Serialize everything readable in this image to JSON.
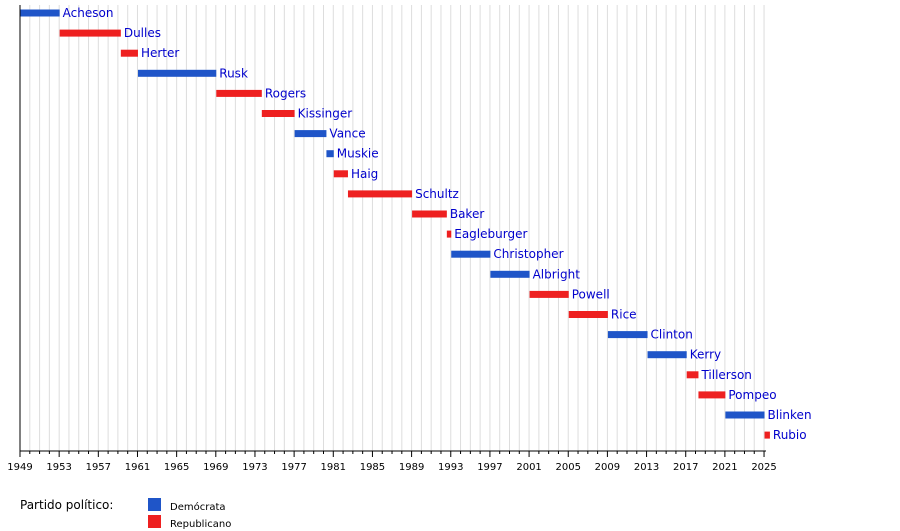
{
  "chart_data": {
    "type": "timeline",
    "xlim": [
      1949,
      2025.2
    ],
    "x_ticks": [
      1949,
      1953,
      1957,
      1961,
      1965,
      1969,
      1973,
      1977,
      1981,
      1985,
      1989,
      1993,
      1997,
      2001,
      2005,
      2009,
      2013,
      2017,
      2021,
      2025
    ],
    "grid": true,
    "series": [
      {
        "name": "Demócrata",
        "color": "#1f55c8"
      },
      {
        "name": "Republicano",
        "color": "#ee2020"
      }
    ],
    "items": [
      {
        "name": "Acheson",
        "start": 1949.05,
        "end": 1953.05,
        "party": "Demócrata"
      },
      {
        "name": "Dulles",
        "start": 1953.05,
        "end": 1959.3,
        "party": "Republicano"
      },
      {
        "name": "Herter",
        "start": 1959.3,
        "end": 1961.05,
        "party": "Republicano"
      },
      {
        "name": "Rusk",
        "start": 1961.05,
        "end": 1969.05,
        "party": "Demócrata"
      },
      {
        "name": "Rogers",
        "start": 1969.05,
        "end": 1973.7,
        "party": "Republicano"
      },
      {
        "name": "Kissinger",
        "start": 1973.7,
        "end": 1977.05,
        "party": "Republicano"
      },
      {
        "name": "Vance",
        "start": 1977.05,
        "end": 1980.3,
        "party": "Demócrata"
      },
      {
        "name": "Muskie",
        "start": 1980.3,
        "end": 1981.05,
        "party": "Demócrata"
      },
      {
        "name": "Haig",
        "start": 1981.05,
        "end": 1982.5,
        "party": "Republicano"
      },
      {
        "name": "Schultz",
        "start": 1982.5,
        "end": 1989.05,
        "party": "Republicano"
      },
      {
        "name": "Baker",
        "start": 1989.05,
        "end": 1992.6,
        "party": "Republicano"
      },
      {
        "name": "Eagleburger",
        "start": 1992.6,
        "end": 1993.05,
        "party": "Republicano"
      },
      {
        "name": "Christopher",
        "start": 1993.05,
        "end": 1997.05,
        "party": "Demócrata"
      },
      {
        "name": "Albright",
        "start": 1997.05,
        "end": 2001.05,
        "party": "Demócrata"
      },
      {
        "name": "Powell",
        "start": 2001.05,
        "end": 2005.05,
        "party": "Republicano"
      },
      {
        "name": "Rice",
        "start": 2005.05,
        "end": 2009.05,
        "party": "Republicano"
      },
      {
        "name": "Clinton",
        "start": 2009.05,
        "end": 2013.1,
        "party": "Demócrata"
      },
      {
        "name": "Kerry",
        "start": 2013.1,
        "end": 2017.1,
        "party": "Demócrata"
      },
      {
        "name": "Tillerson",
        "start": 2017.1,
        "end": 2018.3,
        "party": "Republicano"
      },
      {
        "name": "Pompeo",
        "start": 2018.3,
        "end": 2021.05,
        "party": "Republicano"
      },
      {
        "name": "Blinken",
        "start": 2021.05,
        "end": 2025.05,
        "party": "Demócrata"
      },
      {
        "name": "Rubio",
        "start": 2025.05,
        "end": 2025.6,
        "party": "Republicano"
      }
    ],
    "legend": {
      "title": "Partido político:",
      "placement": "bottom-left",
      "entries": [
        {
          "label": "Demócrata",
          "color": "#1f55c8"
        },
        {
          "label": "Republicano",
          "color": "#ee2020"
        }
      ]
    }
  }
}
